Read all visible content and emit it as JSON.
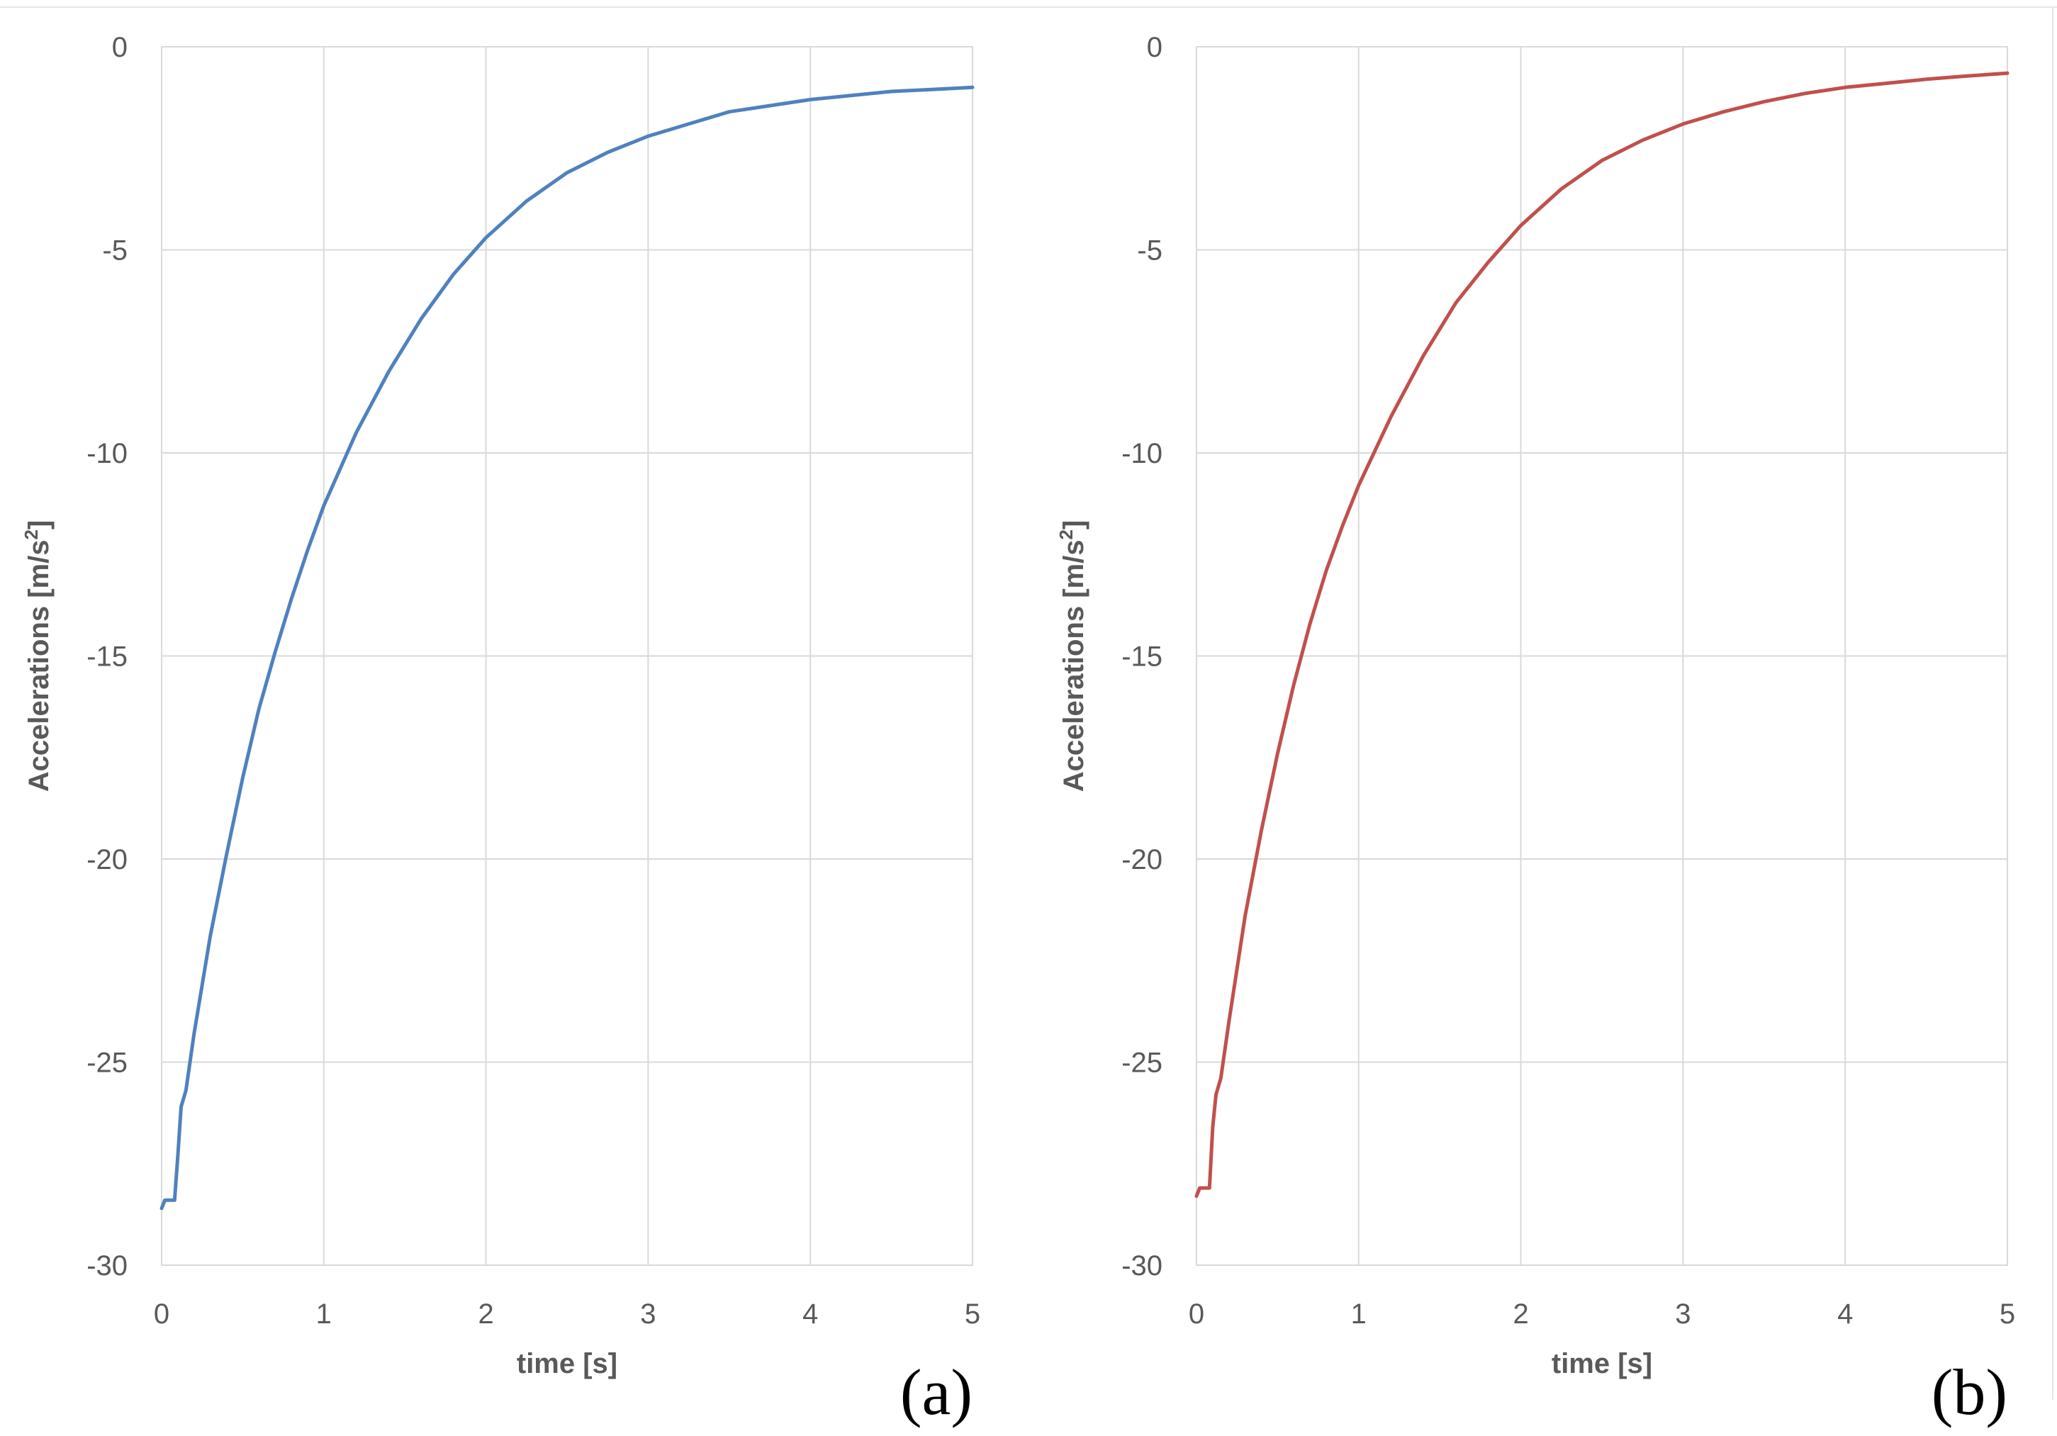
{
  "chart_data": [
    {
      "type": "line",
      "panel_label": "(a)",
      "xlabel": "time [s]",
      "ylabel_main": "Accelerations [m/s",
      "ylabel_sup": "2",
      "ylabel_close": "]",
      "xlim": [
        0,
        5
      ],
      "ylim": [
        -30,
        0
      ],
      "x_ticks": [
        0,
        1,
        2,
        3,
        4,
        5
      ],
      "y_ticks": [
        0,
        -5,
        -10,
        -15,
        -20,
        -25,
        -30
      ],
      "grid": true,
      "series": [
        {
          "color": "#4f81bd",
          "points": [
            [
              0.0,
              -28.6
            ],
            [
              0.02,
              -28.4
            ],
            [
              0.06,
              -28.4
            ],
            [
              0.08,
              -28.4
            ],
            [
              0.1,
              -27.3
            ],
            [
              0.12,
              -26.1
            ],
            [
              0.15,
              -25.7
            ],
            [
              0.2,
              -24.3
            ],
            [
              0.3,
              -21.9
            ],
            [
              0.4,
              -19.9
            ],
            [
              0.5,
              -18.0
            ],
            [
              0.6,
              -16.3
            ],
            [
              0.7,
              -14.9
            ],
            [
              0.8,
              -13.6
            ],
            [
              0.9,
              -12.4
            ],
            [
              1.0,
              -11.3
            ],
            [
              1.2,
              -9.5
            ],
            [
              1.4,
              -8.0
            ],
            [
              1.6,
              -6.7
            ],
            [
              1.8,
              -5.6
            ],
            [
              2.0,
              -4.7
            ],
            [
              2.25,
              -3.8
            ],
            [
              2.5,
              -3.1
            ],
            [
              2.75,
              -2.6
            ],
            [
              3.0,
              -2.2
            ],
            [
              3.25,
              -1.9
            ],
            [
              3.5,
              -1.6
            ],
            [
              3.75,
              -1.45
            ],
            [
              4.0,
              -1.3
            ],
            [
              4.25,
              -1.2
            ],
            [
              4.5,
              -1.1
            ],
            [
              4.75,
              -1.05
            ],
            [
              5.0,
              -1.0
            ]
          ]
        }
      ]
    },
    {
      "type": "line",
      "panel_label": "(b)",
      "xlabel": "time [s]",
      "ylabel_main": "Accelerations [m/s",
      "ylabel_sup": "2",
      "ylabel_close": "]",
      "xlim": [
        0,
        5
      ],
      "ylim": [
        -30,
        0
      ],
      "x_ticks": [
        0,
        1,
        2,
        3,
        4,
        5
      ],
      "y_ticks": [
        0,
        -5,
        -10,
        -15,
        -20,
        -25,
        -30
      ],
      "grid": true,
      "series": [
        {
          "color": "#c0504d",
          "points": [
            [
              0.0,
              -28.3
            ],
            [
              0.02,
              -28.1
            ],
            [
              0.06,
              -28.1
            ],
            [
              0.08,
              -28.1
            ],
            [
              0.1,
              -26.6
            ],
            [
              0.12,
              -25.8
            ],
            [
              0.15,
              -25.4
            ],
            [
              0.2,
              -24.0
            ],
            [
              0.3,
              -21.4
            ],
            [
              0.4,
              -19.3
            ],
            [
              0.5,
              -17.4
            ],
            [
              0.6,
              -15.7
            ],
            [
              0.7,
              -14.2
            ],
            [
              0.8,
              -12.9
            ],
            [
              0.9,
              -11.8
            ],
            [
              1.0,
              -10.8
            ],
            [
              1.2,
              -9.1
            ],
            [
              1.4,
              -7.6
            ],
            [
              1.6,
              -6.3
            ],
            [
              1.8,
              -5.3
            ],
            [
              2.0,
              -4.4
            ],
            [
              2.25,
              -3.5
            ],
            [
              2.5,
              -2.8
            ],
            [
              2.75,
              -2.3
            ],
            [
              3.0,
              -1.9
            ],
            [
              3.25,
              -1.6
            ],
            [
              3.5,
              -1.35
            ],
            [
              3.75,
              -1.15
            ],
            [
              4.0,
              -1.0
            ],
            [
              4.25,
              -0.9
            ],
            [
              4.5,
              -0.8
            ],
            [
              4.75,
              -0.72
            ],
            [
              5.0,
              -0.65
            ]
          ]
        }
      ]
    }
  ]
}
